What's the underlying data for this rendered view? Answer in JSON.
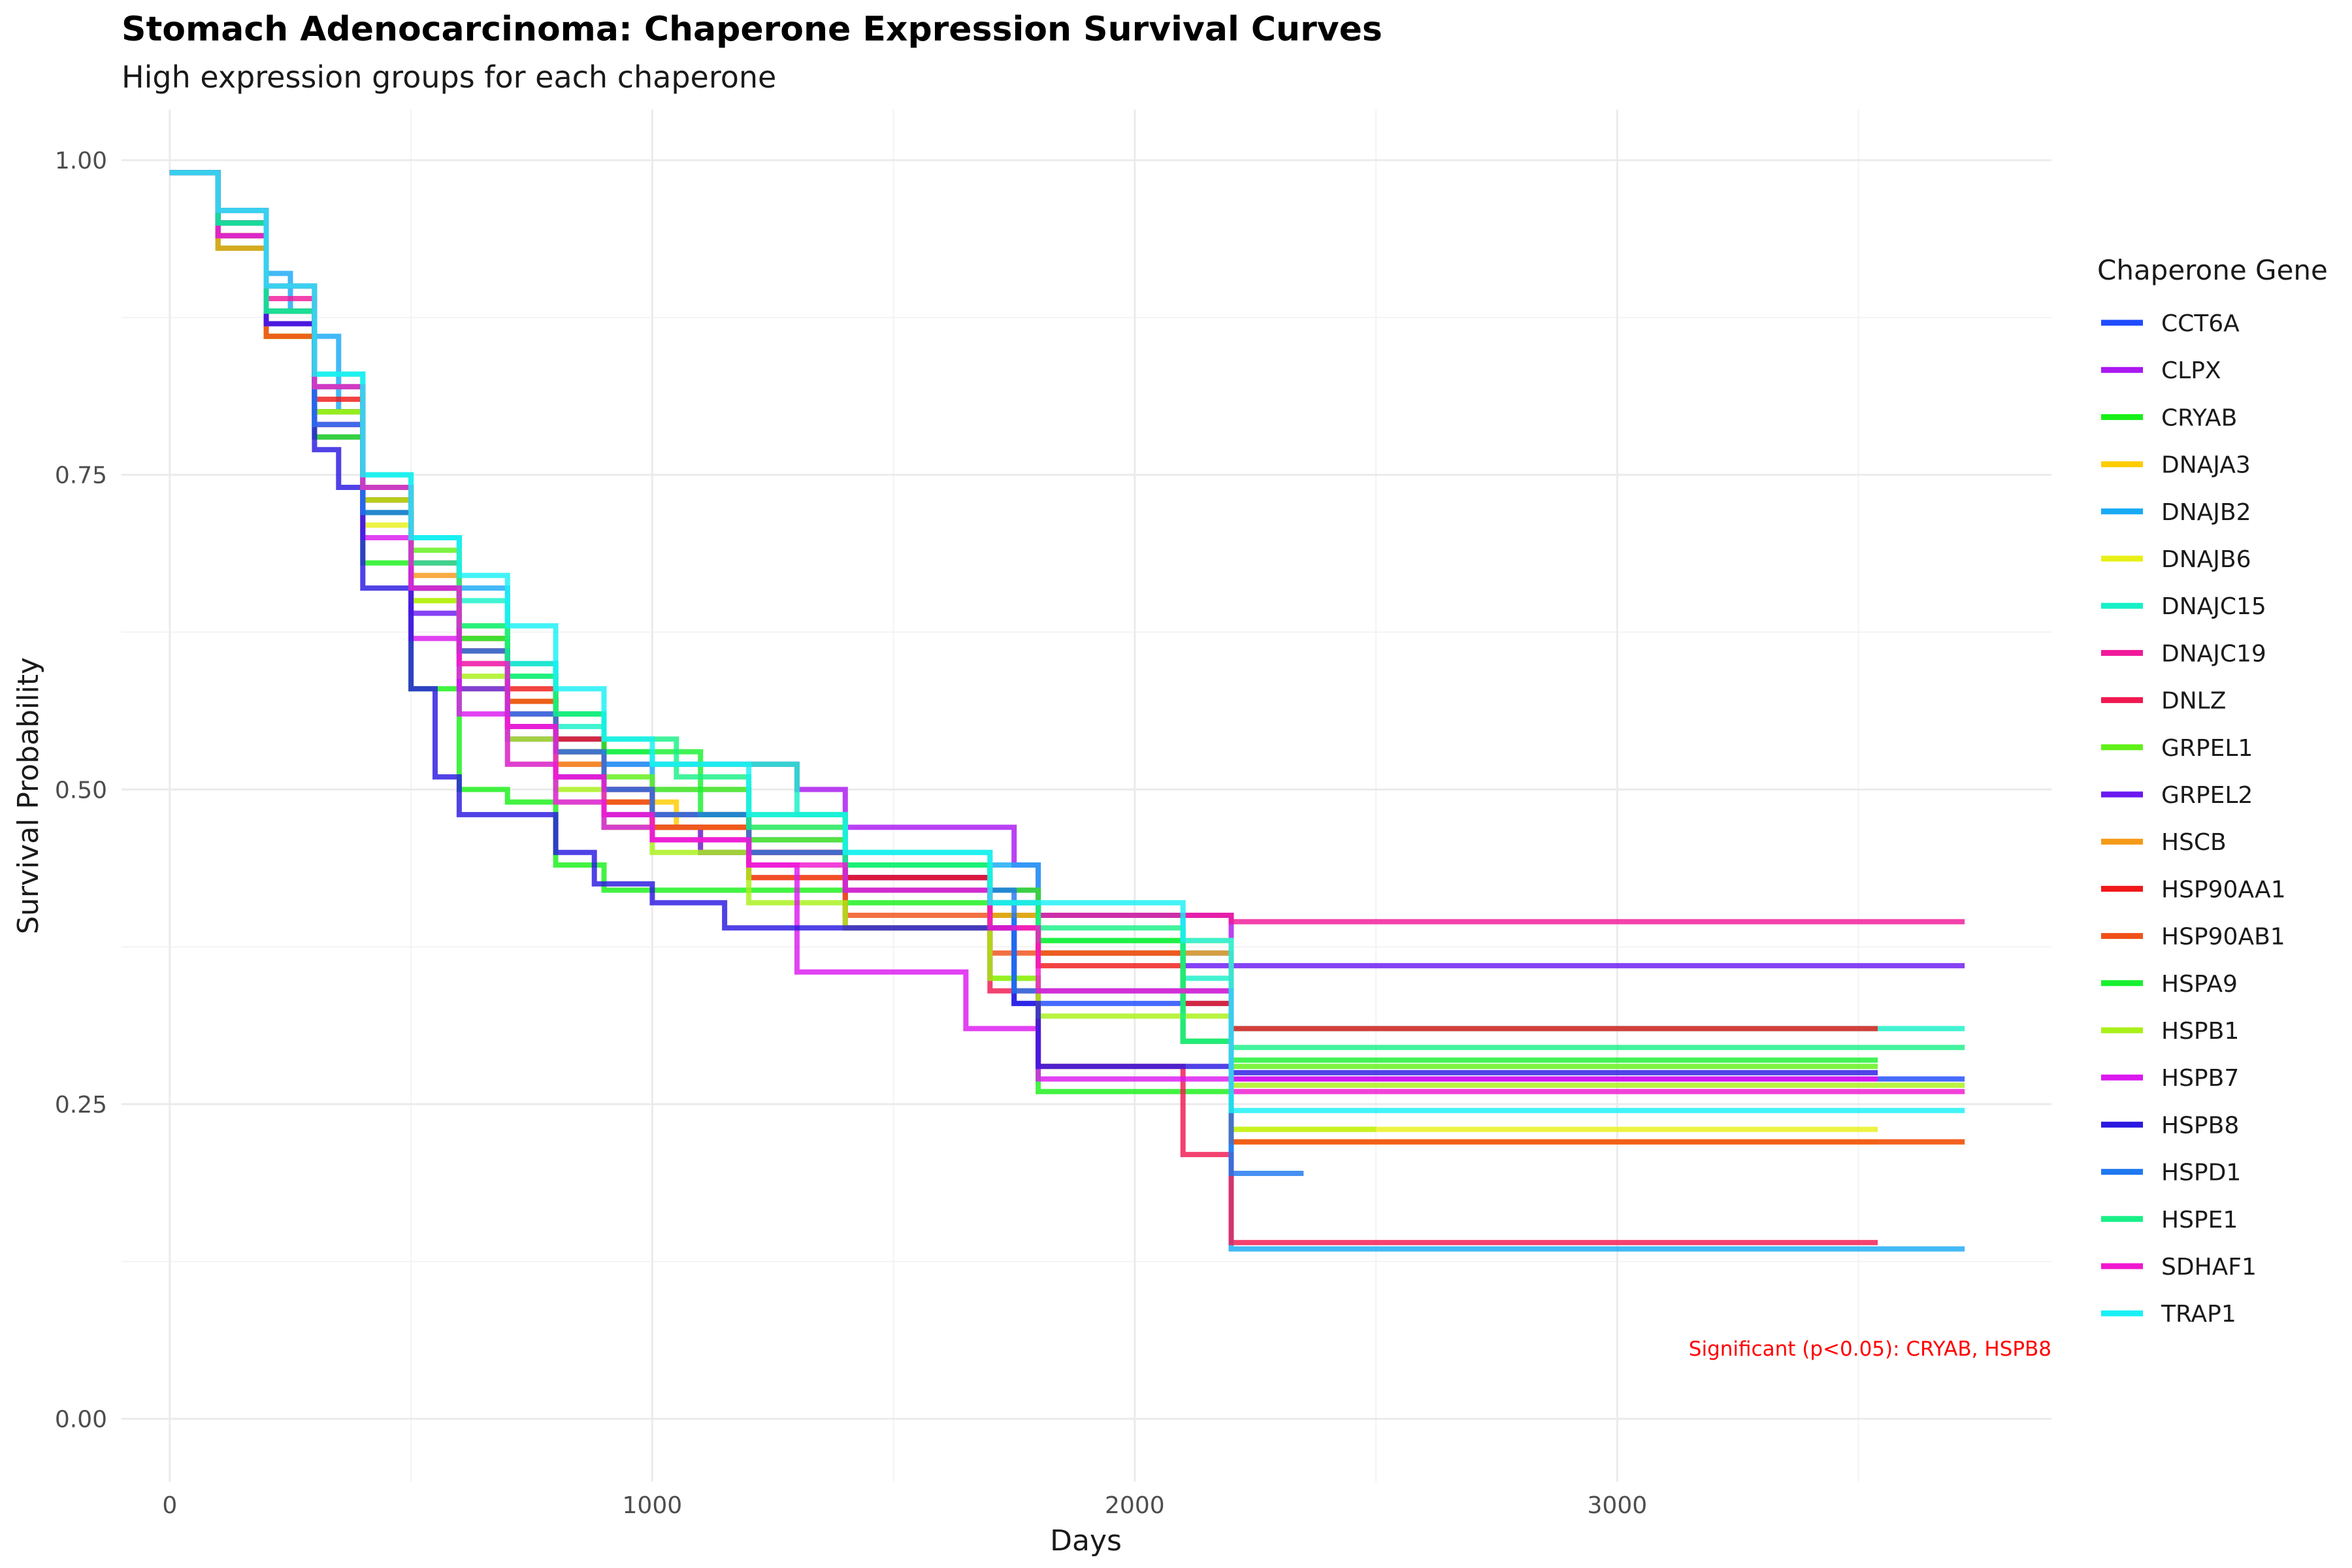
{
  "chart_data": {
    "type": "line",
    "title": "Stomach Adenocarcinoma: Chaperone Expression Survival Curves",
    "subtitle": "High expression groups for each chaperone",
    "xlabel": "Days",
    "ylabel": "Survival Probability",
    "xlim": [
      -100,
      3900
    ],
    "ylim": [
      -0.05,
      1.04
    ],
    "x_ticks": [
      0,
      1000,
      2000,
      3000
    ],
    "x_tick_labels": [
      "0",
      "1000",
      "2000",
      "3000"
    ],
    "y_ticks": [
      0,
      0.25,
      0.5,
      0.75,
      1
    ],
    "y_tick_labels": [
      "0.00",
      "0.25",
      "0.50",
      "0.75",
      "1.00"
    ],
    "grid": true,
    "legend": {
      "title": "Chaperone Gene",
      "position": "right"
    },
    "annotation": {
      "text": "Significant (p<0.05): CRYAB, HSPB8",
      "color": "#ff0000",
      "position": "bottom-right"
    },
    "series": [
      {
        "name": "CCT6A",
        "color": "#1f4bff",
        "x": [
          0,
          100,
          200,
          300,
          400,
          500,
          600,
          700,
          800,
          900,
          1000,
          1200,
          1400,
          1700,
          1750,
          2200,
          3720
        ],
        "y": [
          0.99,
          0.95,
          0.87,
          0.79,
          0.73,
          0.66,
          0.61,
          0.57,
          0.54,
          0.5,
          0.48,
          0.46,
          0.43,
          0.4,
          0.33,
          0.27,
          0.27
        ]
      },
      {
        "name": "CLPX",
        "color": "#aa18f0",
        "x": [
          0,
          100,
          200,
          300,
          400,
          500,
          600,
          700,
          800,
          900,
          1050,
          1300,
          1400,
          1750,
          1800,
          2200,
          3540
        ],
        "y": [
          0.99,
          0.95,
          0.87,
          0.78,
          0.72,
          0.66,
          0.6,
          0.55,
          0.53,
          0.52,
          0.52,
          0.5,
          0.47,
          0.44,
          0.4,
          0.27,
          0.27
        ]
      },
      {
        "name": "CRYAB",
        "color": "#18f018",
        "x": [
          0,
          100,
          200,
          300,
          400,
          500,
          600,
          700,
          800,
          900,
          1000,
          1100,
          1400,
          1700,
          1800,
          2200,
          2500
        ],
        "y": [
          0.99,
          0.93,
          0.86,
          0.78,
          0.68,
          0.58,
          0.5,
          0.49,
          0.44,
          0.42,
          0.42,
          0.42,
          0.41,
          0.35,
          0.26,
          0.23,
          0.23
        ]
      },
      {
        "name": "DNAJA3",
        "color": "#ffcc00",
        "x": [
          0,
          100,
          200,
          300,
          400,
          500,
          600,
          700,
          800,
          900,
          1050,
          1400,
          1700,
          1800,
          2200,
          3540
        ],
        "y": [
          0.99,
          0.94,
          0.87,
          0.8,
          0.72,
          0.65,
          0.6,
          0.56,
          0.52,
          0.49,
          0.47,
          0.44,
          0.4,
          0.38,
          0.22,
          0.22
        ]
      },
      {
        "name": "DNAJB2",
        "color": "#18aaf5",
        "x": [
          0,
          100,
          200,
          250,
          300,
          350,
          400,
          500,
          600,
          700,
          800,
          900,
          1000,
          1200,
          1400,
          1800,
          2100,
          2200,
          3720
        ],
        "y": [
          0.99,
          0.96,
          0.91,
          0.88,
          0.86,
          0.8,
          0.74,
          0.7,
          0.66,
          0.6,
          0.56,
          0.52,
          0.5,
          0.46,
          0.44,
          0.4,
          0.37,
          0.135,
          0.135
        ]
      },
      {
        "name": "DNAJB6",
        "color": "#e8f018",
        "x": [
          0,
          100,
          200,
          300,
          400,
          500,
          600,
          700,
          800,
          900,
          1100,
          1400,
          1700,
          1800,
          2200,
          3540
        ],
        "y": [
          0.99,
          0.94,
          0.86,
          0.79,
          0.71,
          0.65,
          0.58,
          0.52,
          0.49,
          0.47,
          0.45,
          0.42,
          0.4,
          0.38,
          0.23,
          0.23
        ]
      },
      {
        "name": "DNAJC15",
        "color": "#18f0c8",
        "x": [
          0,
          100,
          200,
          300,
          400,
          500,
          600,
          700,
          800,
          900,
          1000,
          1300,
          1400,
          1700,
          1800,
          2100,
          2200,
          3720
        ],
        "y": [
          0.99,
          0.96,
          0.9,
          0.83,
          0.75,
          0.7,
          0.65,
          0.6,
          0.55,
          0.53,
          0.52,
          0.48,
          0.45,
          0.42,
          0.38,
          0.35,
          0.31,
          0.31
        ]
      },
      {
        "name": "DNAJC19",
        "color": "#f0189a",
        "x": [
          0,
          100,
          200,
          300,
          400,
          500,
          600,
          700,
          800,
          900,
          1000,
          1200,
          1400,
          1700,
          1800,
          2100,
          2200,
          3720
        ],
        "y": [
          0.99,
          0.95,
          0.89,
          0.82,
          0.74,
          0.68,
          0.62,
          0.56,
          0.52,
          0.49,
          0.47,
          0.45,
          0.43,
          0.42,
          0.4,
          0.4,
          0.395,
          0.395
        ]
      },
      {
        "name": "DNLZ",
        "color": "#f01850",
        "x": [
          0,
          100,
          200,
          300,
          400,
          500,
          600,
          700,
          800,
          900,
          1000,
          1200,
          1400,
          1700,
          1800,
          2100,
          2200,
          3540
        ],
        "y": [
          0.99,
          0.94,
          0.87,
          0.8,
          0.72,
          0.66,
          0.61,
          0.57,
          0.53,
          0.5,
          0.47,
          0.43,
          0.39,
          0.34,
          0.28,
          0.21,
          0.14,
          0.14
        ]
      },
      {
        "name": "GRPEL1",
        "color": "#60f018",
        "x": [
          0,
          100,
          200,
          300,
          400,
          500,
          600,
          700,
          800,
          900,
          1000,
          1200,
          1400,
          1700,
          1800,
          2100,
          2200,
          3540
        ],
        "y": [
          0.99,
          0.94,
          0.86,
          0.8,
          0.74,
          0.69,
          0.63,
          0.57,
          0.53,
          0.51,
          0.5,
          0.46,
          0.44,
          0.4,
          0.37,
          0.3,
          0.28,
          0.28
        ]
      },
      {
        "name": "GRPEL2",
        "color": "#6a18f0",
        "x": [
          0,
          100,
          200,
          300,
          400,
          500,
          600,
          700,
          800,
          900,
          1000,
          1100,
          1400,
          1700,
          1800,
          2100,
          2200,
          3720
        ],
        "y": [
          0.99,
          0.95,
          0.88,
          0.8,
          0.72,
          0.64,
          0.58,
          0.54,
          0.51,
          0.48,
          0.47,
          0.45,
          0.43,
          0.41,
          0.37,
          0.36,
          0.36,
          0.36
        ]
      },
      {
        "name": "HSCB",
        "color": "#f59a18",
        "x": [
          0,
          100,
          200,
          300,
          400,
          500,
          600,
          700,
          800,
          900,
          1000,
          1200,
          1400,
          1700,
          1800,
          2100,
          2200,
          3720
        ],
        "y": [
          0.99,
          0.93,
          0.86,
          0.8,
          0.73,
          0.67,
          0.62,
          0.57,
          0.52,
          0.49,
          0.47,
          0.45,
          0.42,
          0.4,
          0.37,
          0.37,
          0.22,
          0.22
        ]
      },
      {
        "name": "HSP90AA1",
        "color": "#f01818",
        "x": [
          0,
          100,
          200,
          300,
          400,
          500,
          600,
          700,
          800,
          900,
          1000,
          1200,
          1400,
          1700,
          1800,
          2100,
          2200,
          3540
        ],
        "y": [
          0.99,
          0.95,
          0.88,
          0.81,
          0.73,
          0.66,
          0.61,
          0.58,
          0.54,
          0.5,
          0.48,
          0.45,
          0.43,
          0.39,
          0.36,
          0.33,
          0.31,
          0.31
        ]
      },
      {
        "name": "HSP90AB1",
        "color": "#f05018",
        "x": [
          0,
          100,
          200,
          300,
          400,
          500,
          600,
          700,
          800,
          900,
          1000,
          1200,
          1400,
          1700,
          1800,
          2100,
          2200,
          3720
        ],
        "y": [
          0.99,
          0.94,
          0.86,
          0.79,
          0.72,
          0.66,
          0.61,
          0.57,
          0.53,
          0.49,
          0.47,
          0.43,
          0.4,
          0.37,
          0.37,
          0.3,
          0.22,
          0.22
        ]
      },
      {
        "name": "HSPA9",
        "color": "#18f030",
        "x": [
          0,
          100,
          200,
          300,
          400,
          500,
          600,
          700,
          800,
          900,
          1100,
          1400,
          1700,
          1800,
          2100,
          2200,
          3540
        ],
        "y": [
          0.99,
          0.95,
          0.88,
          0.8,
          0.72,
          0.66,
          0.62,
          0.59,
          0.56,
          0.53,
          0.48,
          0.44,
          0.42,
          0.38,
          0.3,
          0.285,
          0.285
        ]
      },
      {
        "name": "HSPB1",
        "color": "#a8f018",
        "x": [
          0,
          100,
          200,
          300,
          400,
          500,
          600,
          700,
          800,
          900,
          1000,
          1200,
          1400,
          1700,
          1800,
          2100,
          2200,
          3720
        ],
        "y": [
          0.99,
          0.95,
          0.88,
          0.8,
          0.73,
          0.65,
          0.59,
          0.54,
          0.5,
          0.47,
          0.45,
          0.41,
          0.39,
          0.35,
          0.32,
          0.32,
          0.265,
          0.265
        ]
      },
      {
        "name": "HSPB7",
        "color": "#dc18f0",
        "x": [
          0,
          100,
          200,
          300,
          400,
          500,
          600,
          700,
          800,
          900,
          1000,
          1200,
          1300,
          1400,
          1650,
          1700,
          1800,
          2200,
          3540
        ],
        "y": [
          0.99,
          0.94,
          0.87,
          0.79,
          0.7,
          0.62,
          0.56,
          0.52,
          0.49,
          0.47,
          0.46,
          0.44,
          0.355,
          0.355,
          0.31,
          0.31,
          0.27,
          0.27,
          0.27
        ]
      },
      {
        "name": "HSPB8",
        "color": "#2a18e0",
        "x": [
          0,
          100,
          200,
          300,
          350,
          400,
          500,
          550,
          600,
          700,
          800,
          880,
          1000,
          1150,
          1400,
          1750,
          1800,
          2200,
          3540
        ],
        "y": [
          0.99,
          0.95,
          0.87,
          0.77,
          0.74,
          0.66,
          0.58,
          0.51,
          0.48,
          0.48,
          0.45,
          0.425,
          0.41,
          0.39,
          0.39,
          0.33,
          0.28,
          0.275,
          0.275
        ]
      },
      {
        "name": "HSPD1",
        "color": "#1f78f0",
        "x": [
          0,
          100,
          200,
          300,
          400,
          500,
          600,
          700,
          800,
          900,
          1000,
          1200,
          1400,
          1750,
          2200,
          2350
        ],
        "y": [
          0.99,
          0.95,
          0.88,
          0.79,
          0.72,
          0.66,
          0.61,
          0.56,
          0.53,
          0.5,
          0.48,
          0.45,
          0.42,
          0.34,
          0.195,
          0.195
        ]
      },
      {
        "name": "HSPE1",
        "color": "#18f088",
        "x": [
          0,
          100,
          200,
          300,
          400,
          500,
          600,
          700,
          800,
          900,
          1050,
          1200,
          1400,
          1700,
          1800,
          2100,
          2200,
          3720
        ],
        "y": [
          0.99,
          0.95,
          0.88,
          0.82,
          0.74,
          0.68,
          0.63,
          0.59,
          0.56,
          0.54,
          0.51,
          0.47,
          0.44,
          0.41,
          0.39,
          0.3,
          0.295,
          0.295
        ]
      },
      {
        "name": "SDHAF1",
        "color": "#f018d0",
        "x": [
          0,
          100,
          200,
          300,
          400,
          500,
          600,
          700,
          800,
          900,
          1000,
          1200,
          1400,
          1700,
          1800,
          2200,
          3720
        ],
        "y": [
          0.99,
          0.96,
          0.9,
          0.82,
          0.74,
          0.66,
          0.6,
          0.55,
          0.51,
          0.48,
          0.46,
          0.44,
          0.42,
          0.39,
          0.34,
          0.26,
          0.26
        ]
      },
      {
        "name": "TRAP1",
        "color": "#18f0f5",
        "x": [
          0,
          100,
          200,
          300,
          400,
          500,
          600,
          700,
          800,
          900,
          1000,
          1200,
          1400,
          1700,
          2100,
          2200,
          3720
        ],
        "y": [
          0.99,
          0.96,
          0.9,
          0.83,
          0.75,
          0.7,
          0.67,
          0.63,
          0.58,
          0.54,
          0.52,
          0.48,
          0.45,
          0.41,
          0.38,
          0.245,
          0.245
        ]
      }
    ]
  }
}
